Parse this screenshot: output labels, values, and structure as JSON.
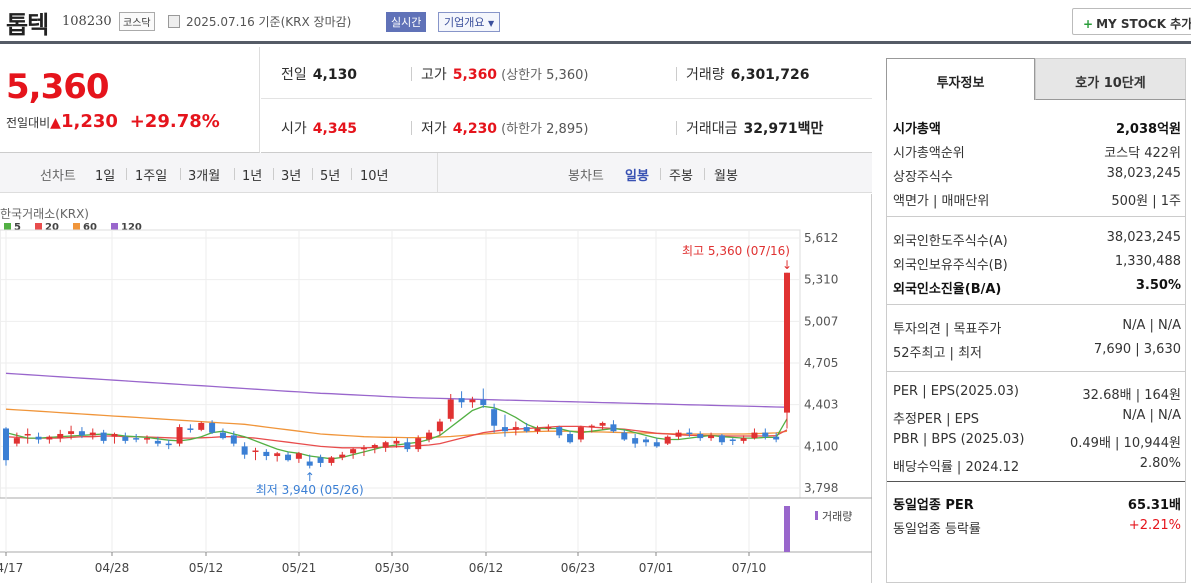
{
  "header": {
    "name": "톱텍",
    "code": "108230",
    "market": "코스닥",
    "date": "2025.07.16  기준(KRX 장마감)",
    "realtime": "실시간",
    "company_info": "기업개요",
    "mystock": "MY STOCK 추가"
  },
  "price": {
    "current": "5,360",
    "change_label": "전일대비",
    "change_value": "1,230",
    "change_pct": "+29.78%",
    "color": "#e5141c"
  },
  "stats": {
    "prev_label": "전일",
    "prev": "4,130",
    "high_label": "고가",
    "high": "5,360",
    "upper_label": "(상한가",
    "upper": "5,360)",
    "vol_label": "거래량",
    "vol": "6,301,726",
    "open_label": "시가",
    "open": "4,345",
    "low_label": "저가",
    "low": "4,230",
    "lower_label": "(하한가",
    "lower": "2,895)",
    "amt_label": "거래대금",
    "amt": "32,971",
    "amt_unit": "백만"
  },
  "chart_tabs": {
    "line_label": "선차트",
    "periods": [
      "1일",
      "1주일",
      "3개월",
      "1년",
      "3년",
      "5년",
      "10년"
    ],
    "candle_label": "봉차트",
    "candles": [
      "일봉",
      "주봉",
      "월봉"
    ],
    "selected_candle": "일봉"
  },
  "chart_data": {
    "type": "candlestick",
    "source": "한국거래소(KRX)",
    "ma_legend": [
      {
        "name": "5",
        "color": "#52b043"
      },
      {
        "name": "20",
        "color": "#e84c4c"
      },
      {
        "name": "60",
        "color": "#f0953a"
      },
      {
        "name": "120",
        "color": "#9966cc"
      }
    ],
    "y_ticks": [
      "5,612",
      "5,310",
      "5,007",
      "4,705",
      "4,403",
      "4,100",
      "3,798"
    ],
    "ylim": [
      3798,
      5612
    ],
    "x_ticks": [
      "04/17",
      "04/28",
      "05/12",
      "05/21",
      "05/30",
      "06/12",
      "06/23",
      "07/01",
      "07/10"
    ],
    "high_annotation": "최고 5,360 (07/16)",
    "low_annotation": "최저 3,940 (05/26)",
    "volume_label": "거래량",
    "ohlc": [
      [
        4230,
        4240,
        3960,
        4000
      ],
      [
        4120,
        4200,
        4100,
        4160
      ],
      [
        4180,
        4230,
        4120,
        4190
      ],
      [
        4170,
        4200,
        4120,
        4150
      ],
      [
        4150,
        4180,
        4120,
        4170
      ],
      [
        4160,
        4220,
        4130,
        4190
      ],
      [
        4190,
        4250,
        4150,
        4210
      ],
      [
        4210,
        4240,
        4160,
        4180
      ],
      [
        4180,
        4230,
        4150,
        4200
      ],
      [
        4200,
        4220,
        4120,
        4140
      ],
      [
        4170,
        4200,
        4120,
        4190
      ],
      [
        4170,
        4200,
        4120,
        4140
      ],
      [
        4160,
        4190,
        4130,
        4150
      ],
      [
        4150,
        4180,
        4120,
        4160
      ],
      [
        4140,
        4170,
        4100,
        4120
      ],
      [
        4120,
        4150,
        4080,
        4110
      ],
      [
        4120,
        4260,
        4100,
        4240
      ],
      [
        4230,
        4260,
        4200,
        4220
      ],
      [
        4220,
        4280,
        4210,
        4270
      ],
      [
        4270,
        4290,
        4190,
        4200
      ],
      [
        4200,
        4230,
        4150,
        4160
      ],
      [
        4180,
        4210,
        4100,
        4120
      ],
      [
        4100,
        4130,
        4010,
        4040
      ],
      [
        4060,
        4090,
        4000,
        4070
      ],
      [
        4060,
        4080,
        4000,
        4030
      ],
      [
        4030,
        4060,
        3990,
        4050
      ],
      [
        4040,
        4060,
        3990,
        4000
      ],
      [
        4010,
        4060,
        3980,
        4050
      ],
      [
        3990,
        4040,
        3940,
        3960
      ],
      [
        4020,
        4040,
        3950,
        3980
      ],
      [
        3980,
        4030,
        3960,
        4020
      ],
      [
        4020,
        4060,
        4000,
        4040
      ],
      [
        4050,
        4090,
        4010,
        4080
      ],
      [
        4080,
        4110,
        4030,
        4090
      ],
      [
        4090,
        4120,
        4050,
        4110
      ],
      [
        4090,
        4140,
        4060,
        4130
      ],
      [
        4120,
        4160,
        4090,
        4140
      ],
      [
        4130,
        4160,
        4060,
        4080
      ],
      [
        4080,
        4180,
        4060,
        4160
      ],
      [
        4150,
        4220,
        4130,
        4200
      ],
      [
        4210,
        4300,
        4180,
        4280
      ],
      [
        4300,
        4480,
        4280,
        4440
      ],
      [
        4450,
        4500,
        4380,
        4420
      ],
      [
        4420,
        4460,
        4380,
        4440
      ],
      [
        4440,
        4520,
        4380,
        4400
      ],
      [
        4370,
        4410,
        4200,
        4250
      ],
      [
        4240,
        4330,
        4170,
        4210
      ],
      [
        4220,
        4280,
        4180,
        4240
      ],
      [
        4240,
        4270,
        4200,
        4210
      ],
      [
        4210,
        4250,
        4190,
        4230
      ],
      [
        4230,
        4260,
        4210,
        4240
      ],
      [
        4240,
        4250,
        4160,
        4180
      ],
      [
        4190,
        4210,
        4120,
        4130
      ],
      [
        4150,
        4250,
        4130,
        4240
      ],
      [
        4240,
        4260,
        4200,
        4250
      ],
      [
        4250,
        4280,
        4220,
        4270
      ],
      [
        4260,
        4290,
        4200,
        4210
      ],
      [
        4200,
        4220,
        4140,
        4150
      ],
      [
        4160,
        4190,
        4090,
        4120
      ],
      [
        4150,
        4170,
        4100,
        4130
      ],
      [
        4130,
        4160,
        4090,
        4100
      ],
      [
        4120,
        4180,
        4110,
        4170
      ],
      [
        4170,
        4220,
        4150,
        4200
      ],
      [
        4200,
        4230,
        4170,
        4190
      ],
      [
        4190,
        4210,
        4140,
        4160
      ],
      [
        4160,
        4200,
        4140,
        4180
      ],
      [
        4180,
        4190,
        4110,
        4130
      ],
      [
        4150,
        4160,
        4110,
        4140
      ],
      [
        4140,
        4180,
        4120,
        4160
      ],
      [
        4160,
        4230,
        4150,
        4200
      ],
      [
        4200,
        4230,
        4150,
        4170
      ],
      [
        4170,
        4200,
        4130,
        4150
      ],
      [
        4345,
        5360,
        4230,
        5360
      ]
    ],
    "ma5": [
      4200,
      4180,
      4160,
      4160,
      4165,
      4170,
      4175,
      4180,
      4185,
      4190,
      4185,
      4175,
      4170,
      4165,
      4155,
      4145,
      4140,
      4150,
      4170,
      4200,
      4210,
      4190,
      4170,
      4140,
      4110,
      4080,
      4060,
      4050,
      4030,
      4020,
      4010,
      4020,
      4040,
      4060,
      4080,
      4100,
      4110,
      4120,
      4130,
      4150,
      4180,
      4240,
      4300,
      4360,
      4390,
      4380,
      4350,
      4310,
      4260,
      4230,
      4230,
      4230,
      4210,
      4200,
      4210,
      4220,
      4230,
      4220,
      4200,
      4180,
      4160,
      4150,
      4150,
      4160,
      4170,
      4180,
      4170,
      4165,
      4160,
      4160,
      4165,
      4165,
      4300
    ],
    "ma20": [
      4170,
      4165,
      4160,
      4160,
      4160,
      4160,
      4165,
      4170,
      4170,
      4175,
      4175,
      4170,
      4170,
      4168,
      4165,
      4162,
      4160,
      4160,
      4162,
      4165,
      4170,
      4170,
      4165,
      4160,
      4150,
      4140,
      4130,
      4120,
      4110,
      4100,
      4095,
      4090,
      4090,
      4090,
      4092,
      4095,
      4098,
      4100,
      4105,
      4110,
      4120,
      4140,
      4160,
      4180,
      4200,
      4210,
      4220,
      4225,
      4230,
      4235,
      4240,
      4245,
      4245,
      4245,
      4240,
      4235,
      4230,
      4225,
      4215,
      4205,
      4195,
      4190,
      4185,
      4180,
      4180,
      4178,
      4176,
      4175,
      4175,
      4175,
      4175,
      4178,
      4220
    ],
    "ma60": [
      4370,
      4365,
      4360,
      4355,
      4350,
      4345,
      4340,
      4335,
      4330,
      4325,
      4320,
      4315,
      4310,
      4305,
      4300,
      4295,
      4290,
      4285,
      4280,
      4275,
      4270,
      4265,
      4260,
      4250,
      4240,
      4230,
      4220,
      4210,
      4200,
      4190,
      4185,
      4180,
      4175,
      4170,
      4168,
      4166,
      4165,
      4164,
      4164,
      4165,
      4168,
      4172,
      4178,
      4184,
      4190,
      4195,
      4200,
      4203,
      4206,
      4208,
      4210,
      4210,
      4210,
      4208,
      4206,
      4204,
      4202,
      4200,
      4198,
      4196,
      4194,
      4192,
      4190,
      4190,
      4190,
      4190,
      4190,
      4190,
      4190,
      4192,
      4195,
      4198,
      4210
    ],
    "ma120": [
      4630,
      4625,
      4620,
      4615,
      4610,
      4605,
      4600,
      4595,
      4590,
      4585,
      4580,
      4575,
      4570,
      4565,
      4560,
      4555,
      4550,
      4545,
      4540,
      4535,
      4530,
      4525,
      4520,
      4515,
      4510,
      4505,
      4500,
      4495,
      4490,
      4485,
      4482,
      4478,
      4474,
      4470,
      4466,
      4462,
      4458,
      4455,
      4452,
      4450,
      4448,
      4446,
      4444,
      4442,
      4440,
      4438,
      4436,
      4434,
      4432,
      4430,
      4428,
      4426,
      4424,
      4422,
      4420,
      4418,
      4416,
      4414,
      4412,
      4410,
      4408,
      4406,
      4404,
      4402,
      4400,
      4398,
      4396,
      4394,
      4392,
      4390,
      4388,
      4386,
      4384
    ],
    "volume": [
      0,
      0,
      0,
      0,
      0,
      0,
      0,
      0,
      0,
      0,
      0,
      0,
      0,
      0,
      0,
      0,
      0,
      0,
      0,
      0,
      0,
      0,
      0,
      0,
      0,
      0,
      0,
      0,
      0,
      0,
      0,
      0,
      0,
      0,
      0,
      0,
      0,
      0,
      0,
      0,
      0,
      0,
      0,
      0,
      0,
      0,
      0,
      0,
      0,
      0,
      0,
      0,
      0,
      0,
      0,
      0,
      0,
      0,
      0,
      0,
      0,
      0,
      0,
      0,
      0,
      0,
      0,
      0,
      0,
      0,
      0,
      0,
      6301726
    ]
  },
  "right_panel": {
    "tab_invest": "투자정보",
    "tab_hoga": "호가 10단계",
    "s1": [
      {
        "k": "시가총액",
        "v": "2,038억원",
        "bold": true
      },
      {
        "k": "시가총액순위",
        "v": "코스닥 422위"
      },
      {
        "k": "상장주식수",
        "v": "38,023,245"
      },
      {
        "k": "액면가 | 매매단위",
        "v": "500원 | 1주"
      }
    ],
    "s2": [
      {
        "k": "외국인한도주식수(A)",
        "v": "38,023,245"
      },
      {
        "k": "외국인보유주식수(B)",
        "v": "1,330,488"
      },
      {
        "k": "외국인소진율(B/A)",
        "v": "3.50%",
        "bold": true
      }
    ],
    "s3": [
      {
        "k": "투자의견 | 목표주가",
        "v": "N/A | N/A"
      },
      {
        "k": "52주최고 | 최저",
        "v": "7,690 | 3,630"
      }
    ],
    "s4": [
      {
        "k": "PER | EPS(2025.03)",
        "v": "32.68배 | 164원"
      },
      {
        "k": "추정PER | EPS",
        "v": "N/A | N/A"
      },
      {
        "k": "PBR | BPS (2025.03)",
        "v": "0.49배 | 10,944원"
      },
      {
        "k": "배당수익률 | 2024.12",
        "v": "2.80%"
      }
    ],
    "s5": [
      {
        "k": "동일업종 PER",
        "v": "65.31배",
        "bold": true
      },
      {
        "k": "동일업종 등락률",
        "v": "+2.21%",
        "red": true
      }
    ]
  }
}
